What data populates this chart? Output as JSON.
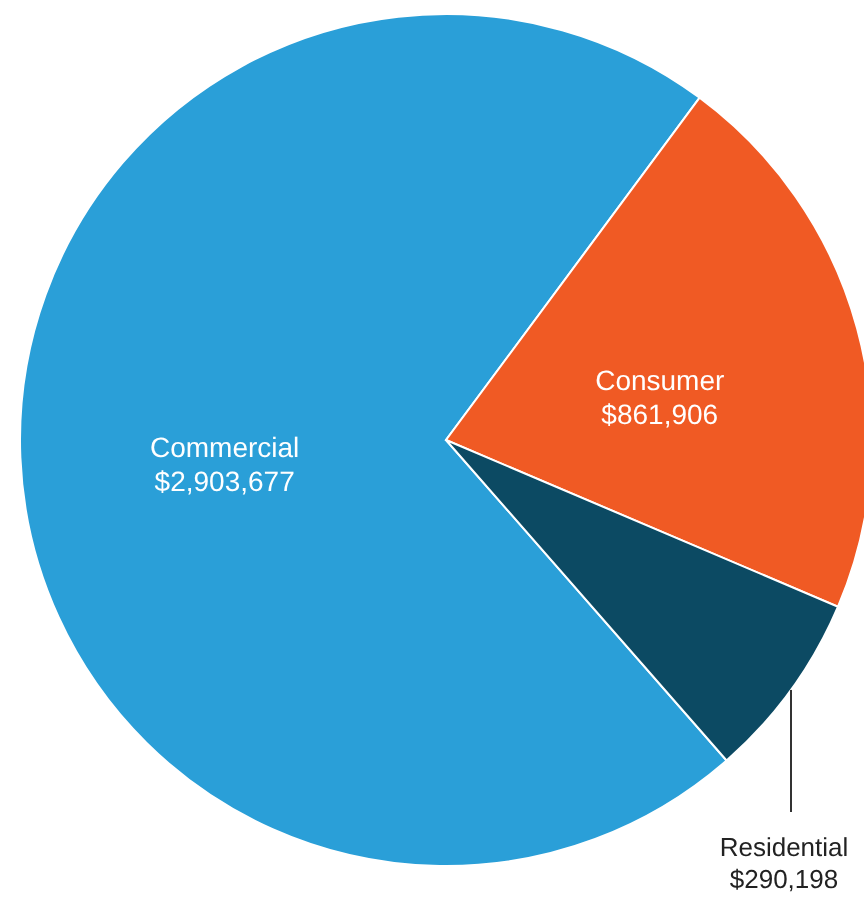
{
  "chart_data": {
    "type": "pie",
    "categories": [
      "Commercial",
      "Consumer",
      "Residential"
    ],
    "values": [
      2903677,
      861906,
      290198
    ],
    "colors": [
      "#2a9fd8",
      "#f05a24",
      "#0c4a63"
    ],
    "value_labels": [
      "$2,903,677",
      "$861,906",
      "$290,198"
    ]
  }
}
